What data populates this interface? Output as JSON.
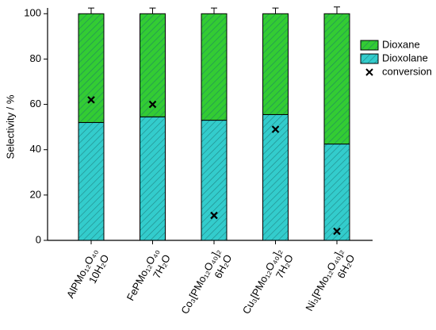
{
  "chart_data": {
    "type": "bar",
    "stacked": true,
    "y_label": "Selectivity / %",
    "categories": [
      "AlPMo₁₂O₄₀ 10H₂O",
      "FePMo₁₂O₄₀ 7H₂O",
      "Co₃[PMo₁₂O₄₀]₂ 6H₂O",
      "Cu₃[PMo₁₂O₄₀]₂ 7H₂O",
      "Ni₃[PMo₁₂O₄₀]₂ 6H₂O"
    ],
    "series": [
      {
        "name": "Dioxolane",
        "color": "#33cccc",
        "values": [
          52,
          54.5,
          53,
          55.5,
          42.5
        ],
        "errors": [
          2,
          2,
          2.5,
          2,
          1.5
        ]
      },
      {
        "name": "Dioxane",
        "color": "#33cc33",
        "values": [
          48,
          45.5,
          47,
          44.5,
          57.5
        ],
        "errors": [
          2.5,
          2.5,
          2.5,
          2.5,
          3
        ]
      }
    ],
    "markers": {
      "name": "conversion",
      "color": "#000000",
      "values": [
        62,
        60,
        11,
        49,
        4
      ]
    },
    "ylim": [
      0,
      105
    ],
    "yticks": [
      0,
      20,
      40,
      60,
      80,
      100
    ],
    "legend": "top-right"
  }
}
